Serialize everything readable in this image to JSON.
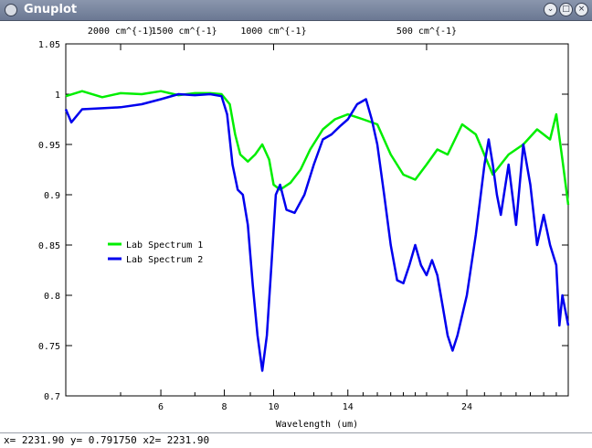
{
  "window": {
    "title": "Gnuplot",
    "buttons": {
      "minimize": "⌄",
      "maximize": "□",
      "close": "×"
    }
  },
  "status": {
    "text": "x= 2231.90  y= 0.791750  x2= 2231.90"
  },
  "chart_data": {
    "type": "line",
    "xlabel": "Wavelength (um)",
    "x_scale": "log",
    "xlim": [
      3.9,
      38
    ],
    "ylim": [
      0.7,
      1.05
    ],
    "yticks": [
      0.7,
      0.75,
      0.8,
      0.85,
      0.9,
      0.95,
      1,
      1.05
    ],
    "ytick_labels": [
      "0.7",
      "0.75",
      "0.8",
      "0.85",
      "0.9",
      "0.95",
      "1",
      "1.05"
    ],
    "xticks": [
      6,
      8,
      10,
      14,
      24
    ],
    "xtick_labels": [
      "6",
      "8",
      "10",
      "14",
      "24"
    ],
    "x_minor_ticks": [
      5,
      7,
      9,
      11,
      12,
      13,
      15,
      16,
      17,
      18,
      19,
      20,
      22,
      26,
      28,
      30,
      32,
      34,
      36
    ],
    "x2ticks": [
      5,
      6.667,
      10,
      20
    ],
    "x2tick_labels": [
      "2000 cm^{-1}",
      "1500 cm^{-1}",
      "1000 cm^{-1}",
      "500 cm^{-1}"
    ],
    "grid": false,
    "legend": "middle-left",
    "series": [
      {
        "name": "Lab Spectrum 1",
        "color": "#00ee00",
        "points": [
          [
            3.9,
            0.998
          ],
          [
            4.2,
            1.003
          ],
          [
            4.6,
            0.997
          ],
          [
            5.0,
            1.001
          ],
          [
            5.5,
            1.0
          ],
          [
            6.0,
            1.003
          ],
          [
            6.5,
            0.999
          ],
          [
            7.0,
            1.001
          ],
          [
            7.5,
            1.001
          ],
          [
            7.9,
            1.0
          ],
          [
            8.2,
            0.99
          ],
          [
            8.4,
            0.96
          ],
          [
            8.6,
            0.94
          ],
          [
            8.9,
            0.933
          ],
          [
            9.2,
            0.94
          ],
          [
            9.5,
            0.95
          ],
          [
            9.8,
            0.935
          ],
          [
            10.0,
            0.91
          ],
          [
            10.3,
            0.905
          ],
          [
            10.8,
            0.912
          ],
          [
            11.3,
            0.925
          ],
          [
            11.8,
            0.945
          ],
          [
            12.5,
            0.965
          ],
          [
            13.2,
            0.975
          ],
          [
            14.0,
            0.98
          ],
          [
            15.0,
            0.975
          ],
          [
            16.0,
            0.97
          ],
          [
            17.0,
            0.94
          ],
          [
            18.0,
            0.92
          ],
          [
            19.0,
            0.915
          ],
          [
            20.0,
            0.93
          ],
          [
            21.0,
            0.945
          ],
          [
            22.0,
            0.94
          ],
          [
            23.5,
            0.97
          ],
          [
            25.0,
            0.96
          ],
          [
            27.0,
            0.92
          ],
          [
            29.0,
            0.94
          ],
          [
            31.0,
            0.95
          ],
          [
            33.0,
            0.965
          ],
          [
            35.0,
            0.955
          ],
          [
            36.0,
            0.98
          ],
          [
            37.0,
            0.935
          ],
          [
            38.0,
            0.89
          ]
        ]
      },
      {
        "name": "Lab Spectrum 2",
        "color": "#0000ee",
        "points": [
          [
            3.9,
            0.985
          ],
          [
            4.0,
            0.972
          ],
          [
            4.2,
            0.985
          ],
          [
            4.6,
            0.986
          ],
          [
            5.0,
            0.987
          ],
          [
            5.5,
            0.99
          ],
          [
            6.0,
            0.995
          ],
          [
            6.5,
            1.0
          ],
          [
            7.0,
            0.999
          ],
          [
            7.5,
            1.0
          ],
          [
            7.9,
            0.998
          ],
          [
            8.1,
            0.98
          ],
          [
            8.3,
            0.93
          ],
          [
            8.5,
            0.905
          ],
          [
            8.7,
            0.9
          ],
          [
            8.9,
            0.87
          ],
          [
            9.1,
            0.81
          ],
          [
            9.3,
            0.76
          ],
          [
            9.5,
            0.725
          ],
          [
            9.7,
            0.76
          ],
          [
            9.9,
            0.83
          ],
          [
            10.1,
            0.9
          ],
          [
            10.3,
            0.91
          ],
          [
            10.6,
            0.885
          ],
          [
            11.0,
            0.882
          ],
          [
            11.5,
            0.9
          ],
          [
            12.0,
            0.93
          ],
          [
            12.5,
            0.955
          ],
          [
            13.0,
            0.96
          ],
          [
            13.5,
            0.968
          ],
          [
            14.0,
            0.975
          ],
          [
            14.6,
            0.99
          ],
          [
            15.2,
            0.995
          ],
          [
            15.6,
            0.975
          ],
          [
            16.0,
            0.95
          ],
          [
            16.5,
            0.9
          ],
          [
            17.0,
            0.85
          ],
          [
            17.5,
            0.815
          ],
          [
            18.0,
            0.812
          ],
          [
            18.5,
            0.83
          ],
          [
            19.0,
            0.85
          ],
          [
            19.5,
            0.83
          ],
          [
            20.0,
            0.82
          ],
          [
            20.5,
            0.835
          ],
          [
            21.0,
            0.82
          ],
          [
            21.5,
            0.79
          ],
          [
            22.0,
            0.76
          ],
          [
            22.5,
            0.745
          ],
          [
            23.0,
            0.76
          ],
          [
            24.0,
            0.8
          ],
          [
            25.0,
            0.86
          ],
          [
            26.0,
            0.93
          ],
          [
            26.5,
            0.955
          ],
          [
            27.0,
            0.93
          ],
          [
            27.5,
            0.9
          ],
          [
            28.0,
            0.88
          ],
          [
            29.0,
            0.93
          ],
          [
            30.0,
            0.87
          ],
          [
            31.0,
            0.95
          ],
          [
            32.0,
            0.91
          ],
          [
            33.0,
            0.85
          ],
          [
            34.0,
            0.88
          ],
          [
            35.0,
            0.85
          ],
          [
            36.0,
            0.83
          ],
          [
            36.5,
            0.77
          ],
          [
            37.0,
            0.8
          ],
          [
            38.0,
            0.77
          ]
        ]
      }
    ]
  }
}
